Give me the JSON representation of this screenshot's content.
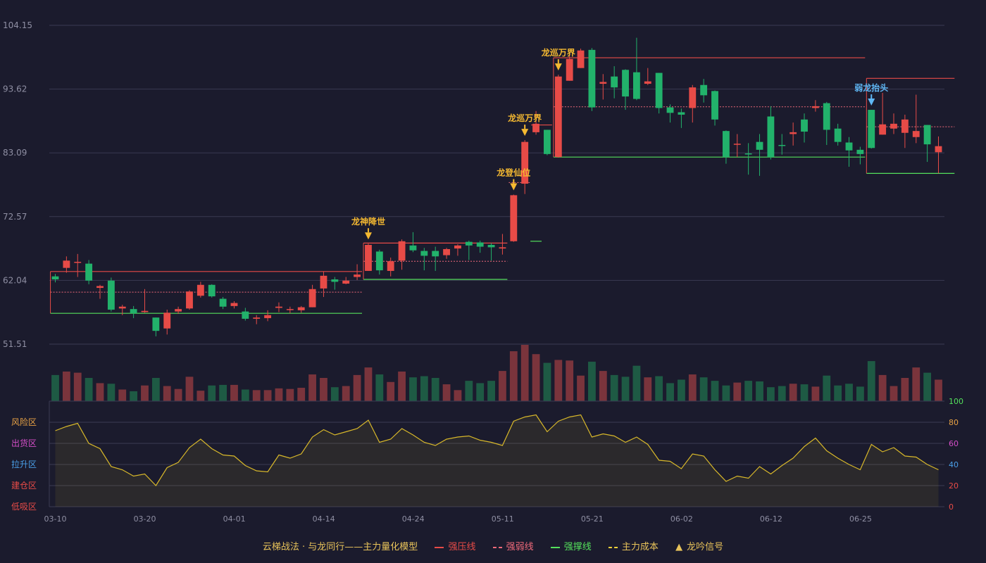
{
  "chart_data": {
    "type": "candlestick",
    "title": "",
    "price_axis": {
      "ticks": [
        104.15,
        93.62,
        83.09,
        72.57,
        62.04,
        51.51
      ],
      "ylim": [
        51.51,
        104.15
      ]
    },
    "date_ticks": [
      "03-10",
      "03-20",
      "04-01",
      "04-14",
      "04-24",
      "05-11",
      "05-21",
      "06-02",
      "06-12",
      "06-25"
    ],
    "ohlc": [
      [
        62.7,
        62.2,
        63.1,
        61.7
      ],
      [
        64.1,
        65.3,
        66.0,
        63.3
      ],
      [
        65.0,
        65.1,
        66.4,
        62.6
      ],
      [
        64.8,
        62.0,
        65.4,
        61.4
      ],
      [
        60.8,
        61.1,
        61.3,
        59.0
      ],
      [
        62.0,
        57.2,
        62.5,
        56.9
      ],
      [
        57.4,
        57.7,
        58.0,
        56.3
      ],
      [
        57.3,
        56.6,
        57.8,
        55.8
      ],
      [
        56.8,
        57.0,
        60.6,
        56.7
      ],
      [
        55.9,
        53.7,
        55.9,
        52.8
      ],
      [
        54.1,
        56.7,
        57.2,
        53.1
      ],
      [
        56.9,
        57.3,
        57.7,
        56.5
      ],
      [
        57.4,
        60.2,
        60.4,
        57.2
      ],
      [
        59.5,
        61.3,
        61.8,
        59.2
      ],
      [
        61.3,
        59.4,
        61.4,
        59.2
      ],
      [
        59.0,
        57.7,
        59.3,
        57.3
      ],
      [
        57.8,
        58.3,
        58.6,
        57.4
      ],
      [
        56.9,
        55.7,
        57.5,
        55.4
      ],
      [
        55.7,
        55.9,
        56.3,
        54.8
      ],
      [
        55.8,
        56.3,
        57.1,
        55.3
      ],
      [
        57.5,
        57.7,
        58.4,
        56.8
      ],
      [
        57.3,
        57.3,
        57.7,
        56.6
      ],
      [
        57.1,
        57.6,
        57.8,
        56.7
      ],
      [
        57.6,
        60.6,
        61.3,
        57.6
      ],
      [
        60.7,
        62.8,
        63.5,
        59.3
      ],
      [
        62.2,
        61.8,
        62.6,
        60.5
      ],
      [
        61.5,
        62.0,
        62.6,
        61.4
      ],
      [
        62.6,
        63.0,
        64.7,
        62.1
      ],
      [
        63.6,
        67.9,
        68.1,
        63.6
      ],
      [
        66.8,
        63.7,
        67.1,
        63.0
      ],
      [
        63.6,
        65.2,
        65.8,
        62.7
      ],
      [
        65.3,
        68.5,
        68.8,
        63.8
      ],
      [
        67.8,
        67.0,
        70.0,
        66.7
      ],
      [
        66.9,
        66.1,
        67.4,
        63.7
      ],
      [
        66.9,
        66.0,
        67.6,
        63.6
      ],
      [
        66.2,
        67.2,
        67.4,
        65.6
      ],
      [
        67.3,
        67.8,
        68.0,
        66.1
      ],
      [
        68.4,
        67.8,
        68.6,
        65.4
      ],
      [
        68.3,
        67.6,
        68.6,
        66.6
      ],
      [
        67.9,
        67.5,
        68.2,
        65.3
      ],
      [
        67.3,
        67.5,
        69.7,
        66.3
      ],
      [
        68.5,
        76.1,
        76.2,
        68.4
      ],
      [
        78.0,
        84.9,
        85.2,
        76.3
      ],
      [
        86.5,
        87.9,
        90.0,
        86.1
      ],
      [
        86.9,
        82.9,
        86.9,
        82.7
      ],
      [
        82.4,
        95.7,
        96.0,
        82.3
      ],
      [
        95.0,
        98.6,
        99.6,
        95.0
      ],
      [
        97.1,
        100.0,
        100.3,
        97.1
      ],
      [
        100.1,
        90.6,
        100.4,
        90.0
      ],
      [
        94.5,
        94.8,
        96.1,
        91.9
      ],
      [
        95.7,
        93.9,
        97.4,
        92.1
      ],
      [
        96.8,
        92.4,
        96.9,
        90.2
      ],
      [
        96.4,
        92.0,
        102.1,
        91.8
      ],
      [
        94.5,
        94.9,
        97.1,
        94.3
      ],
      [
        96.3,
        90.5,
        96.3,
        89.6
      ],
      [
        90.6,
        89.7,
        91.1,
        88.1
      ],
      [
        89.8,
        89.4,
        90.4,
        87.2
      ],
      [
        90.5,
        93.9,
        94.3,
        88.1
      ],
      [
        94.3,
        92.6,
        95.3,
        91.4
      ],
      [
        93.3,
        88.6,
        93.4,
        87.6
      ],
      [
        86.7,
        82.4,
        86.8,
        81.3
      ],
      [
        84.6,
        84.6,
        86.2,
        82.4
      ],
      [
        83.0,
        82.9,
        84.7,
        79.5
      ],
      [
        84.9,
        83.6,
        86.2,
        79.3
      ],
      [
        89.1,
        82.4,
        90.8,
        82.0
      ],
      [
        84.4,
        84.3,
        86.2,
        82.8
      ],
      [
        86.2,
        86.5,
        88.1,
        84.3
      ],
      [
        88.6,
        86.6,
        89.6,
        84.8
      ],
      [
        90.5,
        90.8,
        91.8,
        89.9
      ],
      [
        91.3,
        86.9,
        91.5,
        84.4
      ],
      [
        87.1,
        84.9,
        87.9,
        84.3
      ],
      [
        84.8,
        83.5,
        85.7,
        80.8
      ],
      [
        83.6,
        82.9,
        84.1,
        81.2
      ],
      [
        90.2,
        83.9,
        90.2,
        83.8
      ],
      [
        86.1,
        87.8,
        93.0,
        86.1
      ],
      [
        87.1,
        87.9,
        89.6,
        86.2
      ],
      [
        86.4,
        88.6,
        89.4,
        83.9
      ],
      [
        85.7,
        86.7,
        92.7,
        84.7
      ],
      [
        87.7,
        84.5,
        87.7,
        81.6
      ],
      [
        83.2,
        84.2,
        85.8,
        79.7
      ]
    ],
    "volume": [
      45,
      51,
      49,
      40,
      31,
      30,
      20,
      17,
      27,
      40,
      26,
      21,
      42,
      18,
      27,
      28,
      28,
      20,
      19,
      19,
      22,
      21,
      23,
      46,
      40,
      24,
      26,
      45,
      58,
      46,
      33,
      51,
      41,
      43,
      40,
      29,
      19,
      35,
      31,
      35,
      52,
      86,
      97,
      81,
      66,
      71,
      70,
      44,
      68,
      52,
      45,
      42,
      61,
      41,
      43,
      31,
      37,
      46,
      41,
      35,
      27,
      32,
      35,
      34,
      24,
      26,
      30,
      29,
      25,
      44,
      27,
      30,
      25,
      69,
      45,
      26,
      40,
      58,
      49,
      37
    ],
    "kdj_axis": {
      "ticks": [
        100,
        80,
        60,
        40,
        20,
        0
      ],
      "ylim": [
        0,
        100
      ]
    },
    "zone_labels": [
      "风险区",
      "出货区",
      "拉升区",
      "建仓区",
      "低吸区"
    ],
    "zone_colors": [
      "#e8a245",
      "#d44ec8",
      "#4a9fe8",
      "#e74b47",
      "#e74b47"
    ],
    "oscillator": [
      72,
      76,
      79,
      60,
      55,
      38,
      35,
      29,
      31,
      20,
      37,
      42,
      56,
      64,
      55,
      49,
      48,
      39,
      34,
      33,
      49,
      46,
      50,
      66,
      73,
      68,
      71,
      74,
      82,
      61,
      64,
      74,
      68,
      61,
      58,
      64,
      66,
      67,
      63,
      61,
      58,
      81,
      85,
      87,
      71,
      81,
      85,
      87,
      66,
      69,
      67,
      61,
      66,
      59,
      44,
      43,
      36,
      50,
      48,
      35,
      24,
      29,
      27,
      38,
      31,
      39,
      46,
      57,
      65,
      53,
      46,
      40,
      35,
      59,
      52,
      56,
      48,
      47,
      40,
      35
    ],
    "zones": [
      {
        "start": 0,
        "end": 27,
        "res": 63.5,
        "weak": 60.1,
        "sup": 56.6
      },
      {
        "start": 28,
        "end": 40,
        "res": 68.2,
        "weak": 65.2,
        "sup": 62.2
      },
      {
        "start": 41,
        "end": 42,
        "res": 0,
        "weak": 78.2,
        "sup": 0
      },
      {
        "start": 43,
        "end": 44,
        "res": 87.7,
        "weak": 0,
        "sup": 0
      },
      {
        "start": 45,
        "end": 72,
        "res": 98.8,
        "weak": 90.7,
        "sup": 82.4
      },
      {
        "start": 73,
        "end": 80,
        "res": 95.4,
        "weak": 87.4,
        "sup": 79.7
      }
    ],
    "stub_line": {
      "start": 42,
      "end": 43,
      "value": 68.5
    },
    "signals": [
      {
        "index": 28,
        "text": "龙神降世",
        "color": "#f5b931"
      },
      {
        "index": 41,
        "text": "龙登仙位",
        "color": "#f5b931"
      },
      {
        "index": 42,
        "text": "龙巡万界",
        "color": "#f5b931"
      },
      {
        "index": 45,
        "text": "龙巡万界",
        "color": "#f5b931"
      },
      {
        "index": 73,
        "text": "弱龙抬头",
        "color": "#5fb7f5"
      }
    ],
    "colors": {
      "up": "#e74b47",
      "down": "#22b26b",
      "resistance": "#e74b47",
      "weak": "#f06a7a",
      "support": "#54e05c",
      "oscillator": "#d8b82a"
    }
  },
  "legend": {
    "title": "云梯战法 · 与龙同行——主力量化模型",
    "items": [
      {
        "label": "强压线",
        "color": "#e74b47",
        "style": "solid"
      },
      {
        "label": "强弱线",
        "color": "#f06a7a",
        "style": "dashed"
      },
      {
        "label": "强撑线",
        "color": "#54e05c",
        "style": "solid"
      },
      {
        "label": "主力成本",
        "color": "#f5d23a",
        "style": "dashed"
      },
      {
        "label": "龙吟信号",
        "color": "#e8c35a",
        "style": "triangle"
      }
    ]
  }
}
